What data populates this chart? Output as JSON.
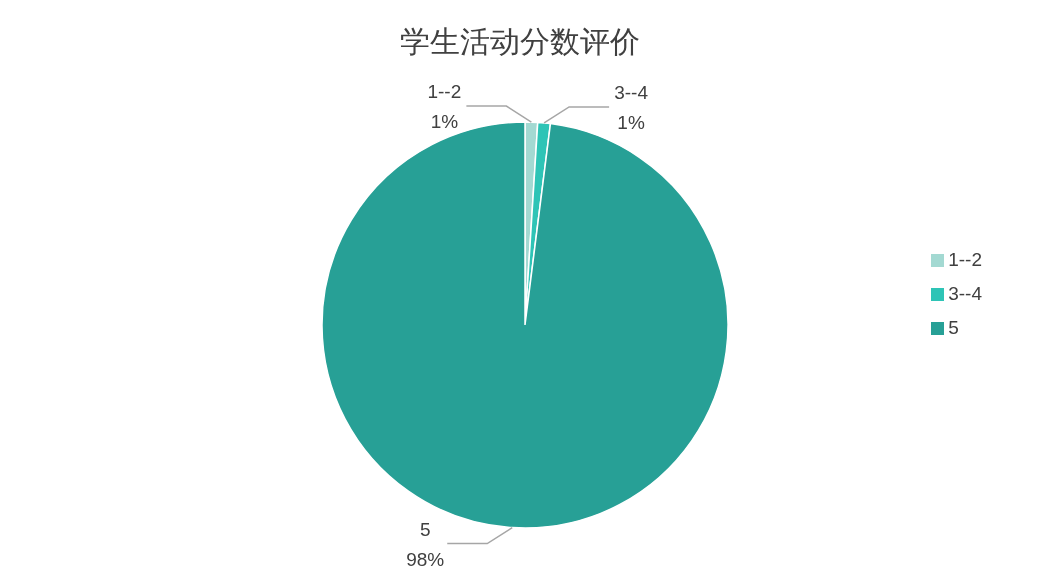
{
  "chart_data": {
    "type": "pie",
    "title": "学生活动分数评价",
    "categories": [
      "1--2",
      "3--4",
      "5"
    ],
    "values": [
      1,
      1,
      98
    ],
    "colors": [
      "#a3d9d2",
      "#2ec4b6",
      "#27a096"
    ],
    "value_labels": [
      "1%",
      "1%",
      "98%"
    ],
    "legend": "right"
  }
}
